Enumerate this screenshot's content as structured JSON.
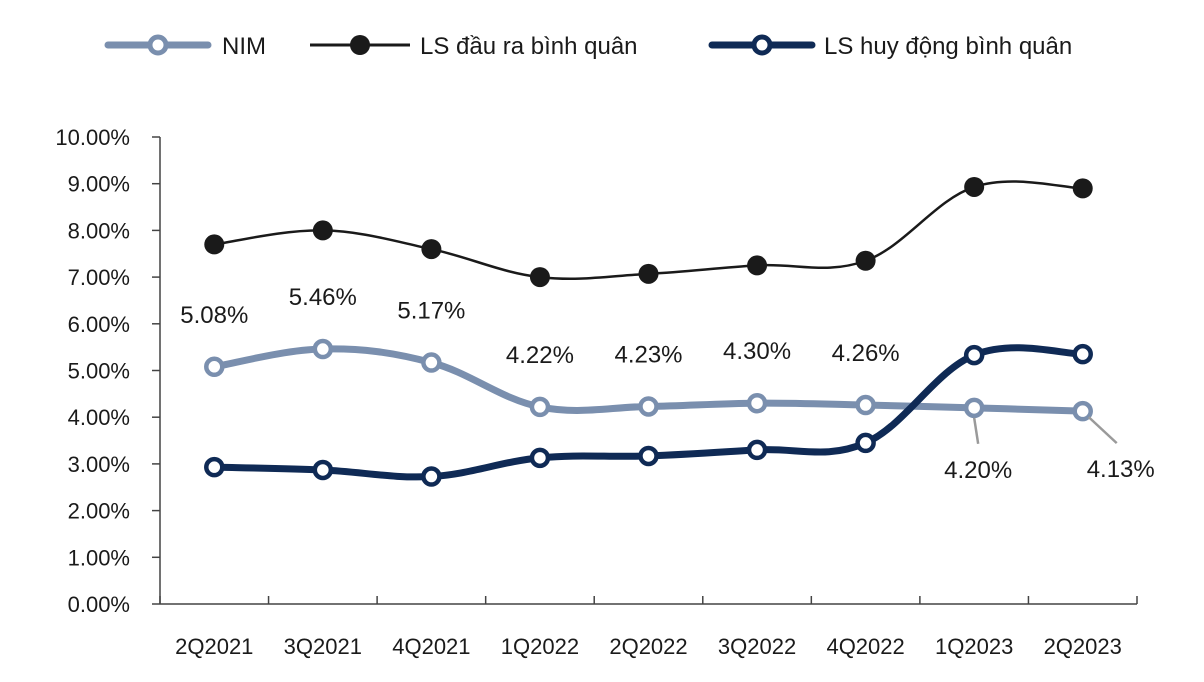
{
  "chart_data": {
    "type": "line",
    "categories": [
      "2Q2021",
      "3Q2021",
      "4Q2021",
      "1Q2022",
      "2Q2022",
      "3Q2022",
      "4Q2022",
      "1Q2023",
      "2Q2023"
    ],
    "ylim": [
      0,
      10
    ],
    "y_ticks": [
      "0.00%",
      "1.00%",
      "2.00%",
      "3.00%",
      "4.00%",
      "5.00%",
      "6.00%",
      "7.00%",
      "8.00%",
      "9.00%",
      "10.00%"
    ],
    "grid": false,
    "legend_position": "top",
    "series": [
      {
        "name": "NIM",
        "values": [
          5.08,
          5.46,
          5.17,
          4.22,
          4.23,
          4.3,
          4.26,
          4.2,
          4.13
        ],
        "data_labels": [
          "5.08%",
          "5.46%",
          "5.17%",
          "4.22%",
          "4.23%",
          "4.30%",
          "4.26%",
          "4.20%",
          "4.13%"
        ],
        "color": "#7a8fae",
        "marker": "hollow-circle"
      },
      {
        "name": "LS đầu ra bình quân",
        "values": [
          7.7,
          8.0,
          7.6,
          7.0,
          7.07,
          7.25,
          7.35,
          8.93,
          8.9
        ],
        "color": "#1a1a1a",
        "marker": "filled-circle"
      },
      {
        "name": "LS huy động bình quân",
        "values": [
          2.93,
          2.87,
          2.73,
          3.13,
          3.17,
          3.3,
          3.45,
          5.33,
          5.35
        ],
        "color": "#0f2a55",
        "marker": "hollow-circle"
      }
    ]
  }
}
